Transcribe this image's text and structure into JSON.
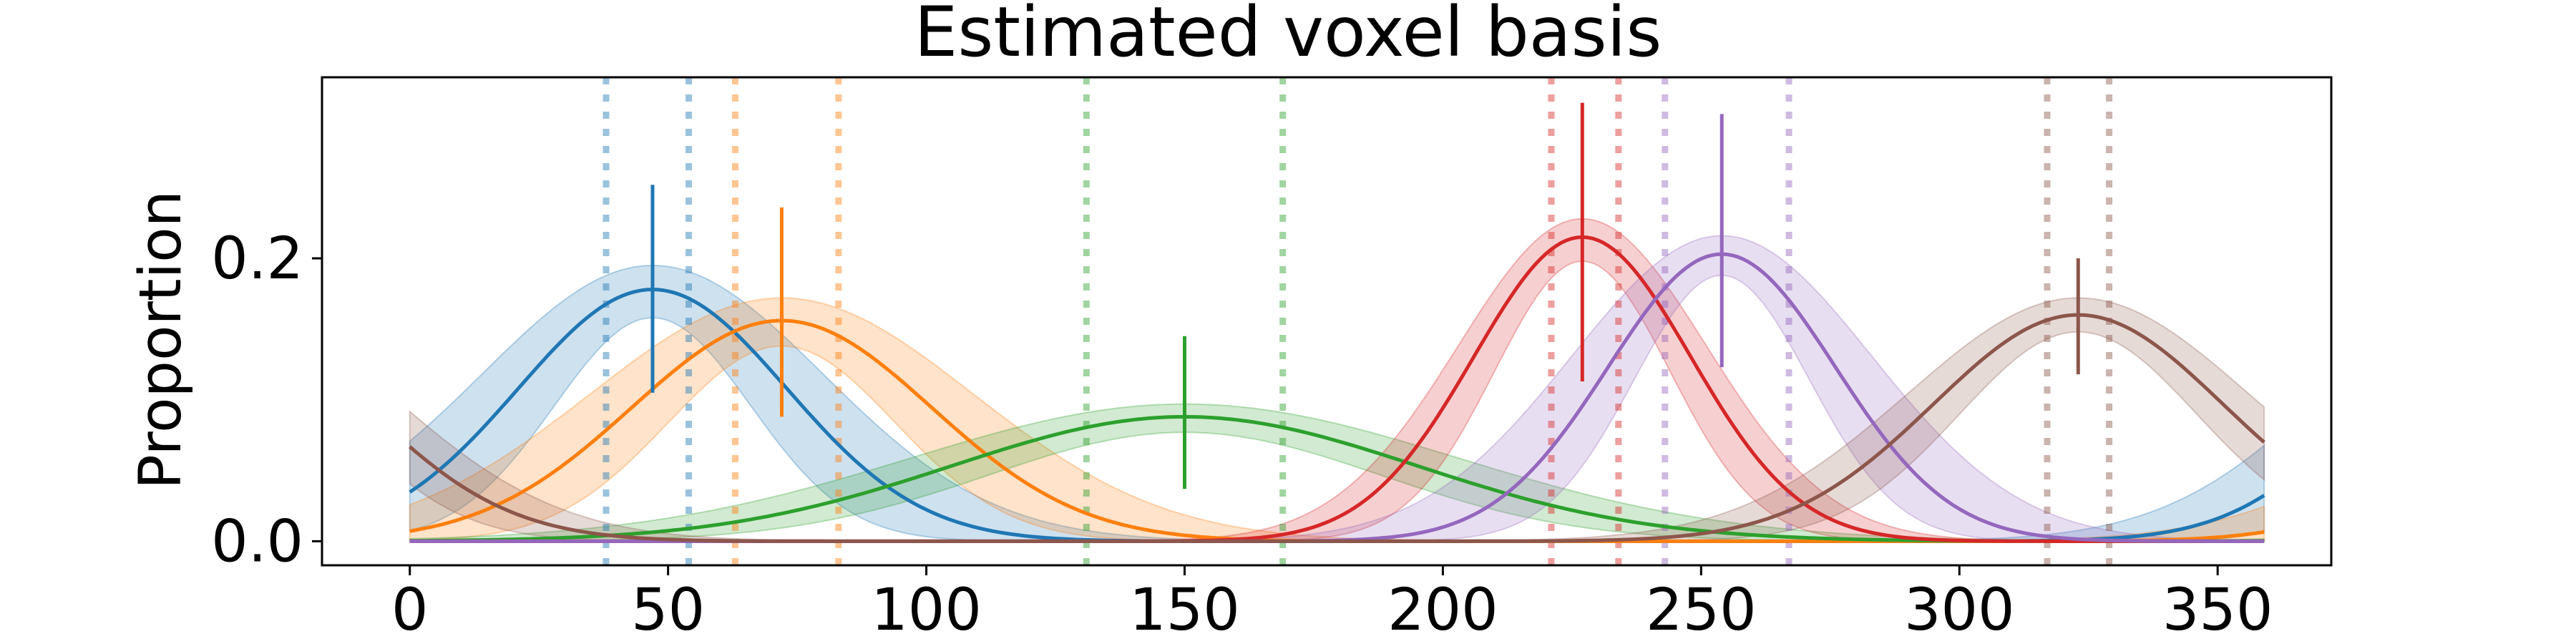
{
  "chart_data": {
    "type": "line",
    "title": "Estimated voxel basis",
    "xlabel": "",
    "ylabel": "Proportion",
    "xlim": [
      -17,
      372
    ],
    "ylim": [
      -0.017,
      0.328
    ],
    "xticks": [
      0,
      50,
      100,
      150,
      200,
      250,
      300,
      350
    ],
    "yticks": [
      0.0,
      0.2
    ],
    "ytick_labels": [
      "0.0",
      "0.2"
    ],
    "grid": false,
    "legend": false,
    "series": [
      {
        "color": "#1f77b4",
        "mean": 47,
        "peak": 0.178,
        "sd": 26,
        "band_low_sd": 19,
        "band_high_sd": 33,
        "band_peak_low": 0.158,
        "band_peak_high": 0.195,
        "ci": [
          38,
          54
        ],
        "bar": [
          0.105,
          0.252
        ]
      },
      {
        "color": "#ff7f0e",
        "mean": 72,
        "peak": 0.156,
        "sd": 29,
        "band_low_sd": 22,
        "band_high_sd": 37,
        "band_peak_low": 0.138,
        "band_peak_high": 0.172,
        "ci": [
          63,
          83
        ],
        "bar": [
          0.088,
          0.236
        ]
      },
      {
        "color": "#2ca02c",
        "mean": 150,
        "peak": 0.088,
        "sd": 45,
        "band_low_sd": 38,
        "band_high_sd": 53,
        "band_peak_low": 0.077,
        "band_peak_high": 0.097,
        "ci": [
          131,
          169
        ],
        "bar": [
          0.037,
          0.145
        ]
      },
      {
        "color": "#d62728",
        "mean": 227,
        "peak": 0.215,
        "sd": 21,
        "band_low_sd": 17,
        "band_high_sd": 24,
        "band_peak_low": 0.198,
        "band_peak_high": 0.228,
        "ci": [
          221,
          234
        ],
        "bar": [
          0.113,
          0.31
        ]
      },
      {
        "color": "#9467bd",
        "mean": 254,
        "peak": 0.203,
        "sd": 22,
        "band_low_sd": 17,
        "band_high_sd": 29,
        "band_peak_low": 0.188,
        "band_peak_high": 0.216,
        "ci": [
          243,
          267
        ],
        "bar": [
          0.123,
          0.302
        ]
      },
      {
        "color": "#8c564b",
        "mean": 323,
        "peak": 0.16,
        "sd": 28,
        "band_low_sd": 23,
        "band_high_sd": 33,
        "band_peak_low": 0.148,
        "band_peak_high": 0.172,
        "ci": [
          317,
          329
        ],
        "bar": [
          0.118,
          0.2
        ]
      }
    ]
  }
}
